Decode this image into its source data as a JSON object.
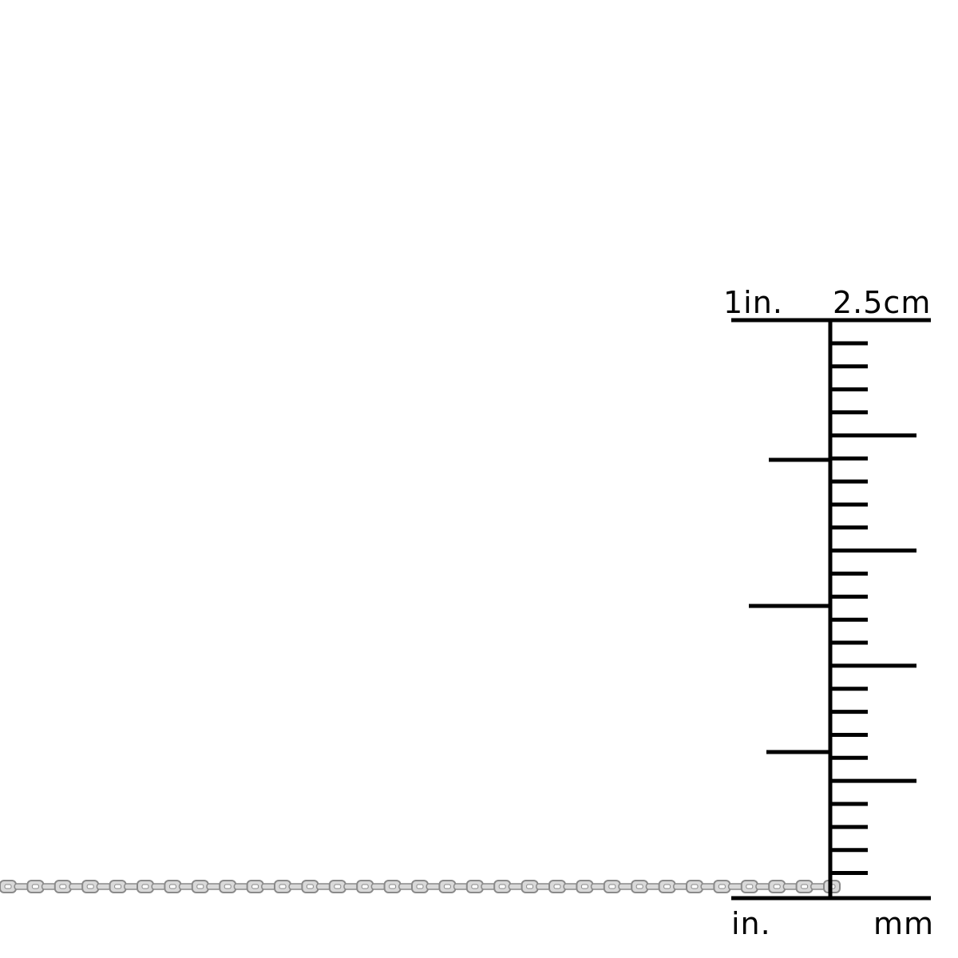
{
  "ruler": {
    "top_left_label": "1in.",
    "top_right_label": "2.5cm",
    "bottom_left_label": "in.",
    "bottom_right_label": "mm"
  },
  "colors": {
    "ruler": "#000000",
    "chain_fill": "#d9d9d9",
    "chain_edge": "#8a8a8a"
  }
}
